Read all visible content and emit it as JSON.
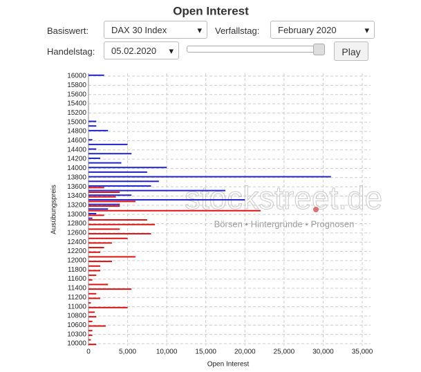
{
  "controls": {
    "basiswert_label": "Basiswert:",
    "basiswert_value": "DAX 30 Index",
    "verfallstag_label": "Verfallstag:",
    "verfallstag_value": "February 2020",
    "handelstag_label": "Handelstag:",
    "handelstag_value": "05.02.2020",
    "play_button": "Play"
  },
  "watermark": {
    "brand": "stockstreet.de",
    "tagline": "Börsen • Hintergründe • Prognosen"
  },
  "chart_data": {
    "type": "barh",
    "title": "Open Interest",
    "x_label": "Open Interest",
    "y_label": "Ausübungspreis",
    "categories": [
      "16000",
      null,
      "15800",
      null,
      "15600",
      null,
      "15400",
      null,
      "15200",
      null,
      "15000",
      null,
      "14800",
      null,
      "14600",
      null,
      "14400",
      null,
      "14200",
      null,
      "14000",
      null,
      "13800",
      null,
      "13600",
      null,
      "13400",
      null,
      "13200",
      null,
      "13000",
      null,
      "12800",
      null,
      "12600",
      null,
      "12400",
      null,
      "12200",
      null,
      "12000",
      null,
      "11800",
      null,
      "11600",
      null,
      "11400",
      null,
      "11200",
      null,
      "11000",
      null,
      "10800",
      null,
      "10600",
      null,
      "10300",
      null,
      "10000"
    ],
    "series": [
      {
        "color": "#2222cc",
        "values": [
          2000,
          0,
          0,
          0,
          0,
          0,
          0,
          0,
          0,
          0,
          1000,
          1000,
          2500,
          0,
          500,
          5000,
          1000,
          5500,
          1500,
          4200,
          10000,
          7500,
          31000,
          9000,
          8000,
          17500,
          5500,
          20000,
          4000,
          2500,
          1000,
          500,
          0,
          0,
          0,
          0,
          0,
          0,
          0,
          0,
          0,
          0,
          0,
          0,
          0,
          0,
          0,
          0,
          0,
          0,
          0,
          0,
          0,
          0,
          0,
          0,
          0,
          0,
          0
        ]
      },
      {
        "color": "#dd1111",
        "values": [
          0,
          0,
          0,
          0,
          0,
          0,
          0,
          0,
          0,
          0,
          0,
          0,
          0,
          0,
          0,
          0,
          0,
          0,
          0,
          0,
          0,
          0,
          0,
          0,
          2000,
          4000,
          3500,
          6000,
          4000,
          22000,
          2000,
          7500,
          8500,
          4000,
          8000,
          5000,
          3000,
          2000,
          1500,
          6000,
          3000,
          1500,
          1500,
          1000,
          500,
          2500,
          5500,
          1000,
          1500,
          300,
          5000,
          800,
          1000,
          500,
          2200,
          500,
          500,
          300,
          1000
        ]
      }
    ],
    "xlim": [
      0,
      35000
    ],
    "xticks": [
      0,
      {
        "value": 5000,
        "label": "5,000"
      },
      {
        "value": 10000,
        "label": "10,000"
      },
      {
        "value": 15000,
        "label": "15,000"
      },
      {
        "value": 20000,
        "label": "20,000"
      },
      {
        "value": 25000,
        "label": "25,000"
      },
      {
        "value": 30000,
        "label": "30,000"
      },
      {
        "value": 35000,
        "label": "35,000"
      }
    ],
    "grid": true
  }
}
